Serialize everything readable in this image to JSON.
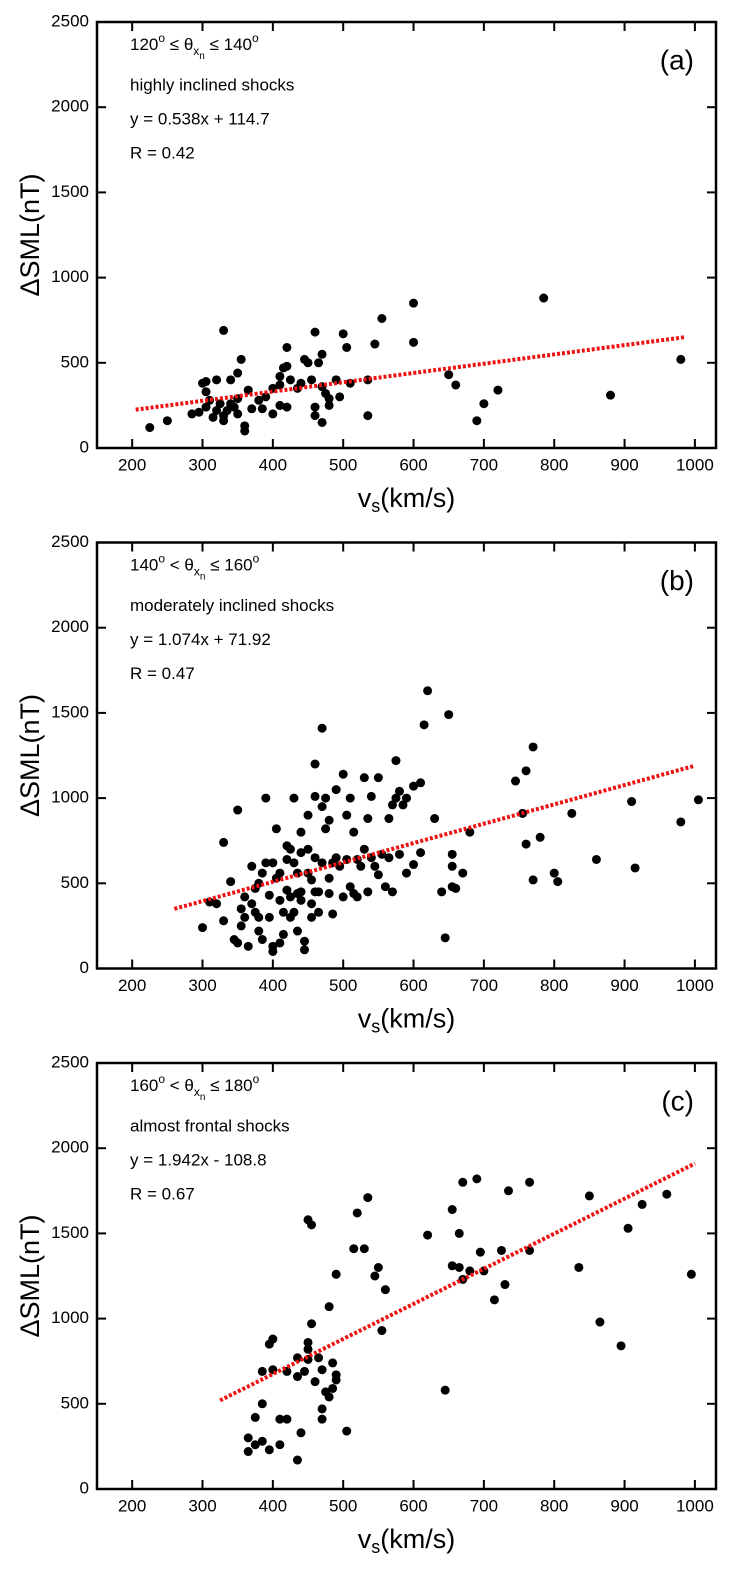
{
  "chart_data": [
    {
      "type": "scatter",
      "panel_label": "(a)",
      "annotation": {
        "condition": [
          "120",
          "o",
          " ≤ θ",
          "x",
          "n",
          " ≤ 140",
          "o"
        ],
        "description": "highly inclined shocks",
        "equation": "y = 0.538x + 114.7",
        "r": "R = 0.42"
      },
      "x_label": [
        "v",
        "s",
        "(km/s)"
      ],
      "y_label": "ΔSML(nT)",
      "xlim": [
        150,
        1030
      ],
      "ylim": [
        0,
        2500
      ],
      "xticks": [
        200,
        300,
        400,
        500,
        600,
        700,
        800,
        900,
        1000
      ],
      "yticks": [
        0,
        500,
        1000,
        1500,
        2000,
        2500
      ],
      "color": "#000000",
      "x": [
        225,
        250,
        285,
        295,
        300,
        305,
        305,
        310,
        305,
        315,
        320,
        325,
        330,
        330,
        335,
        340,
        345,
        350,
        330,
        320,
        340,
        350,
        355,
        350,
        360,
        360,
        365,
        370,
        380,
        385,
        390,
        400,
        400,
        410,
        410,
        415,
        420,
        420,
        425,
        435,
        440,
        445,
        450,
        455,
        460,
        465,
        460,
        470,
        470,
        475,
        480,
        480,
        490,
        495,
        500,
        510,
        505,
        535,
        535,
        545,
        555,
        600,
        600,
        650,
        660,
        690,
        700,
        720,
        785,
        880,
        980,
        470,
        460,
        420,
        410
      ],
      "y": [
        120,
        160,
        200,
        210,
        380,
        390,
        330,
        280,
        240,
        180,
        220,
        260,
        190,
        160,
        220,
        260,
        240,
        200,
        690,
        400,
        400,
        440,
        520,
        290,
        130,
        100,
        340,
        230,
        280,
        230,
        300,
        200,
        350,
        370,
        420,
        470,
        480,
        590,
        400,
        350,
        380,
        520,
        500,
        400,
        240,
        500,
        680,
        550,
        360,
        320,
        290,
        250,
        400,
        300,
        670,
        380,
        590,
        190,
        400,
        610,
        760,
        620,
        850,
        430,
        370,
        160,
        260,
        340,
        880,
        310,
        520,
        150,
        190,
        240,
        250
      ],
      "fit": {
        "x": [
          205,
          985
        ],
        "y": [
          225,
          650
        ],
        "color": "#ee1111"
      }
    },
    {
      "type": "scatter",
      "panel_label": "(b)",
      "annotation": {
        "condition": [
          "140",
          "o",
          " < θ",
          "x",
          "n",
          " ≤ 160",
          "o"
        ],
        "description": "moderately inclined shocks",
        "equation": "y = 1.074x + 71.92",
        "r": "R = 0.47"
      },
      "x_label": [
        "v",
        "s",
        "(km/s)"
      ],
      "y_label": "ΔSML(nT)",
      "xlim": [
        150,
        1030
      ],
      "ylim": [
        0,
        2500
      ],
      "xticks": [
        200,
        300,
        400,
        500,
        600,
        700,
        800,
        900,
        1000
      ],
      "yticks": [
        0,
        500,
        1000,
        1500,
        2000,
        2500
      ],
      "color": "#000000",
      "x": [
        300,
        310,
        320,
        330,
        330,
        340,
        345,
        350,
        350,
        355,
        355,
        360,
        360,
        365,
        370,
        370,
        375,
        375,
        380,
        380,
        380,
        385,
        385,
        390,
        390,
        395,
        395,
        400,
        400,
        400,
        405,
        405,
        410,
        410,
        410,
        415,
        415,
        420,
        420,
        420,
        425,
        425,
        425,
        430,
        430,
        430,
        435,
        435,
        435,
        440,
        440,
        440,
        440,
        445,
        445,
        450,
        450,
        450,
        455,
        455,
        455,
        460,
        460,
        460,
        460,
        465,
        465,
        470,
        470,
        470,
        475,
        475,
        480,
        480,
        480,
        485,
        485,
        490,
        490,
        495,
        500,
        500,
        505,
        505,
        510,
        510,
        515,
        515,
        520,
        520,
        525,
        530,
        530,
        535,
        535,
        540,
        540,
        545,
        550,
        550,
        555,
        560,
        565,
        565,
        570,
        570,
        575,
        575,
        580,
        580,
        585,
        590,
        590,
        600,
        600,
        610,
        610,
        615,
        620,
        630,
        640,
        645,
        650,
        655,
        655,
        655,
        660,
        670,
        680,
        745,
        755,
        760,
        760,
        770,
        770,
        780,
        800,
        805,
        825,
        860,
        910,
        915,
        980,
        1005
      ],
      "y": [
        240,
        390,
        380,
        280,
        740,
        510,
        170,
        930,
        150,
        350,
        250,
        420,
        300,
        130,
        600,
        380,
        330,
        470,
        500,
        300,
        220,
        560,
        170,
        620,
        1000,
        430,
        300,
        130,
        100,
        620,
        820,
        530,
        560,
        400,
        150,
        330,
        200,
        720,
        460,
        640,
        700,
        420,
        300,
        1000,
        620,
        330,
        560,
        440,
        220,
        800,
        680,
        450,
        400,
        160,
        110,
        900,
        700,
        560,
        520,
        380,
        300,
        1200,
        1010,
        650,
        450,
        450,
        330,
        1410,
        950,
        620,
        1000,
        820,
        870,
        530,
        440,
        620,
        320,
        1050,
        650,
        600,
        1140,
        420,
        900,
        640,
        1000,
        480,
        800,
        440,
        640,
        420,
        600,
        1120,
        700,
        880,
        450,
        650,
        1010,
        600,
        1120,
        550,
        670,
        480,
        880,
        650,
        960,
        450,
        1220,
        1000,
        1040,
        670,
        960,
        1000,
        560,
        1070,
        610,
        1090,
        680,
        1430,
        1630,
        880,
        450,
        180,
        1490,
        670,
        600,
        480,
        470,
        560,
        800,
        1100,
        910,
        1160,
        730,
        1300,
        520,
        770,
        560,
        510,
        910,
        640,
        980,
        590,
        860,
        990
      ],
      "fit": {
        "x": [
          260,
          1000
        ],
        "y": [
          350,
          1190
        ],
        "color": "#ee1111"
      }
    },
    {
      "type": "scatter",
      "panel_label": "(c)",
      "annotation": {
        "condition": [
          "160",
          "o",
          " < θ",
          "x",
          "n",
          " ≤ 180",
          "o"
        ],
        "description": "almost frontal shocks",
        "equation": "y = 1.942x - 108.8",
        "r": "R = 0.67"
      },
      "x_label": [
        "v",
        "s",
        "(km/s)"
      ],
      "y_label": "ΔSML(nT)",
      "xlim": [
        150,
        1030
      ],
      "ylim": [
        0,
        2500
      ],
      "xticks": [
        200,
        300,
        400,
        500,
        600,
        700,
        800,
        900,
        1000
      ],
      "yticks": [
        0,
        500,
        1000,
        1500,
        2000,
        2500
      ],
      "color": "#000000",
      "x": [
        365,
        365,
        375,
        375,
        385,
        385,
        385,
        395,
        395,
        400,
        400,
        410,
        410,
        420,
        420,
        435,
        435,
        435,
        440,
        445,
        450,
        450,
        450,
        450,
        455,
        455,
        460,
        465,
        470,
        470,
        470,
        475,
        480,
        480,
        485,
        485,
        490,
        490,
        490,
        505,
        515,
        520,
        530,
        535,
        545,
        550,
        560,
        555,
        620,
        645,
        655,
        655,
        665,
        670,
        665,
        670,
        680,
        690,
        695,
        700,
        715,
        725,
        730,
        735,
        765,
        765,
        835,
        850,
        865,
        895,
        905,
        925,
        960,
        995
      ],
      "y": [
        300,
        220,
        260,
        420,
        500,
        690,
        280,
        230,
        850,
        880,
        700,
        260,
        410,
        690,
        410,
        170,
        660,
        770,
        330,
        690,
        760,
        860,
        820,
        1580,
        970,
        1550,
        630,
        770,
        700,
        470,
        410,
        570,
        1070,
        540,
        590,
        740,
        1260,
        670,
        640,
        340,
        1410,
        1620,
        1410,
        1710,
        1250,
        1300,
        1170,
        930,
        1490,
        580,
        1310,
        1640,
        1500,
        1800,
        1300,
        1230,
        1280,
        1820,
        1390,
        1280,
        1110,
        1400,
        1200,
        1750,
        1800,
        1400,
        1300,
        1720,
        980,
        840,
        1530,
        1670,
        1730,
        1260
      ],
      "fit": {
        "x": [
          325,
          1000
        ],
        "y": [
          520,
          1910
        ],
        "color": "#ee1111"
      }
    }
  ]
}
